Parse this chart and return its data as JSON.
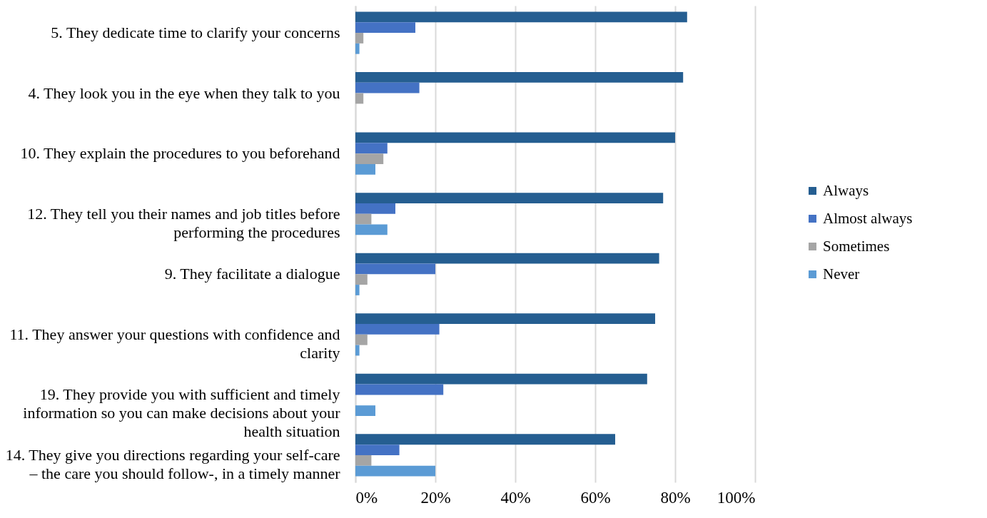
{
  "chart_data": {
    "type": "bar",
    "orientation": "horizontal",
    "categories": [
      "5. They dedicate time to clarify your concerns",
      "4. They look you in the eye when they talk to you",
      "10. They explain  the procedures to you beforehand",
      "12. They tell you their names and job titles before performing the procedures",
      "9. They facilitate a dialogue",
      "11. They answer your questions with confidence and clarity",
      "19. They provide you with sufficient and timely information so you can make decisions about your health situation",
      "14. They give you directions regarding your self-care – the care you should follow-, in a timely manner"
    ],
    "series": [
      {
        "name": "Always",
        "color": "#255e91",
        "values": [
          83,
          82,
          80,
          77,
          76,
          75,
          73,
          65
        ]
      },
      {
        "name": "Almost always",
        "color": "#4472c4",
        "values": [
          15,
          16,
          8,
          10,
          20,
          21,
          22,
          11
        ]
      },
      {
        "name": "Sometimes",
        "color": "#a5a5a5",
        "values": [
          2,
          2,
          7,
          4,
          3,
          3,
          null,
          4
        ]
      },
      {
        "name": "Never",
        "color": "#5b9bd5",
        "values": [
          1,
          null,
          5,
          8,
          1,
          1,
          5,
          20
        ]
      }
    ],
    "xlim": [
      0,
      100
    ],
    "xticks": [
      {
        "value": 0,
        "label": "0%"
      },
      {
        "value": 20,
        "label": "20%"
      },
      {
        "value": 40,
        "label": "40%"
      },
      {
        "value": 60,
        "label": "60%"
      },
      {
        "value": 80,
        "label": "80%"
      },
      {
        "value": 100,
        "label": "100%"
      }
    ],
    "grid": "x",
    "legend": "right"
  }
}
